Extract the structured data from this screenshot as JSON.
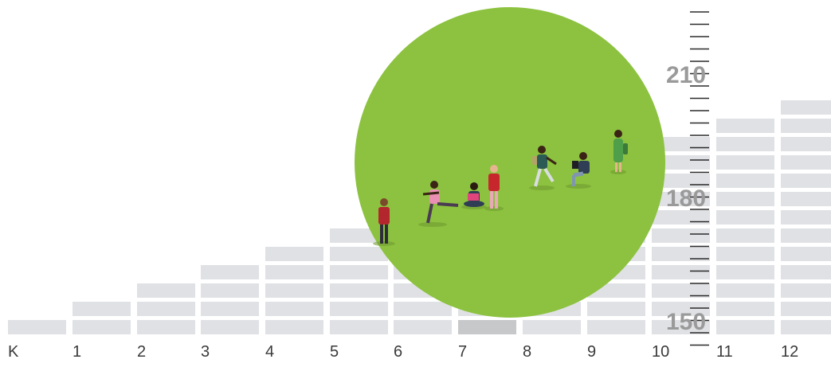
{
  "grade_labels": [
    "K",
    "1",
    "2",
    "3",
    "4",
    "5",
    "6",
    "7",
    "8",
    "9",
    "10",
    "11",
    "12"
  ],
  "steps_per_grade": [
    1,
    2,
    3,
    4,
    5,
    6,
    7,
    8,
    9,
    10,
    11,
    12,
    13
  ],
  "highlighted_grade": "7",
  "scale": {
    "labels": [
      "210",
      "180",
      "150"
    ],
    "values": [
      210,
      180,
      150
    ]
  },
  "colors": {
    "brick": "#dfe1e4",
    "brick_highlight": "#c6c8ca",
    "circle": "#8cc23f",
    "scale_text": "#9a9a9a",
    "ruler": "#2b2b2b",
    "grade_text": "#3a3a3a"
  },
  "figures": [
    {
      "name": "student-standing-red-icon"
    },
    {
      "name": "student-kicking-pink-icon"
    },
    {
      "name": "student-sitting-reading-icon"
    },
    {
      "name": "student-standing-red-shirt-icon"
    },
    {
      "name": "student-walking-backpack-icon"
    },
    {
      "name": "student-sitting-tablet-icon"
    },
    {
      "name": "student-standing-green-icon"
    }
  ]
}
